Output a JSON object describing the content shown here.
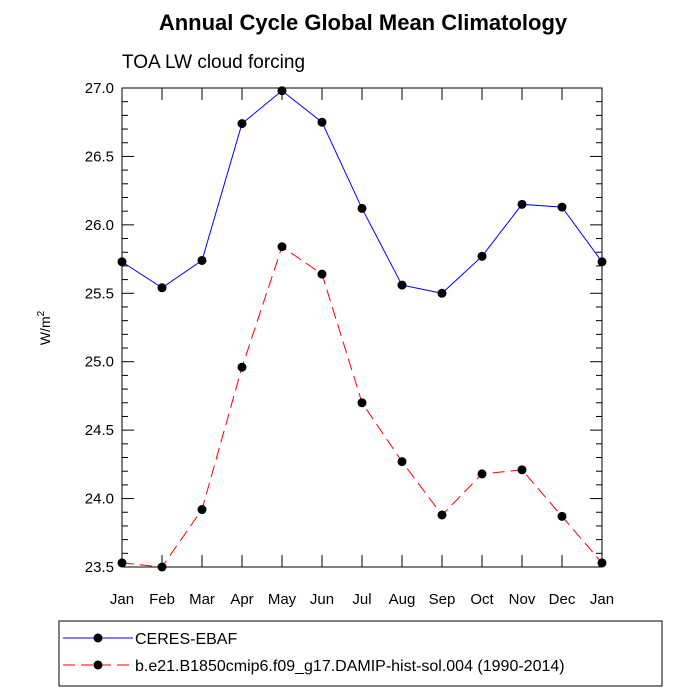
{
  "chart_data": {
    "type": "line",
    "title": "Annual Cycle Global Mean Climatology",
    "subtitle": "TOA LW cloud forcing",
    "ylabel": "W/m",
    "ylabel_superscript": "2",
    "xlabel": "",
    "ylim": [
      23.5,
      27.0
    ],
    "yticks": [
      "27.0",
      "26.5",
      "26.0",
      "25.5",
      "25.0",
      "24.5",
      "24.0",
      "23.5"
    ],
    "yticks_values": [
      27.0,
      26.5,
      26.0,
      25.5,
      25.0,
      24.5,
      24.0,
      23.5
    ],
    "categories": [
      "Jan",
      "Feb",
      "Mar",
      "Apr",
      "May",
      "Jun",
      "Jul",
      "Aug",
      "Sep",
      "Oct",
      "Nov",
      "Dec",
      "Jan"
    ],
    "grid": false,
    "legend_position": "bottom",
    "series": [
      {
        "name": "CERES-EBAF",
        "color": "#0000ff",
        "dash": "solid",
        "marker": "filled-circle",
        "values": [
          25.73,
          25.54,
          25.74,
          26.74,
          26.98,
          26.75,
          26.12,
          25.56,
          25.5,
          25.77,
          26.15,
          26.13,
          25.73
        ]
      },
      {
        "name": "b.e21.B1850cmip6.f09_g17.DAMIP-hist-sol.004 (1990-2014)",
        "color": "#ff0000",
        "dash": "dashed",
        "marker": "filled-circle",
        "values": [
          23.53,
          23.5,
          23.92,
          24.96,
          25.84,
          25.64,
          24.7,
          24.27,
          23.88,
          24.18,
          24.21,
          23.87,
          23.53
        ]
      }
    ]
  }
}
